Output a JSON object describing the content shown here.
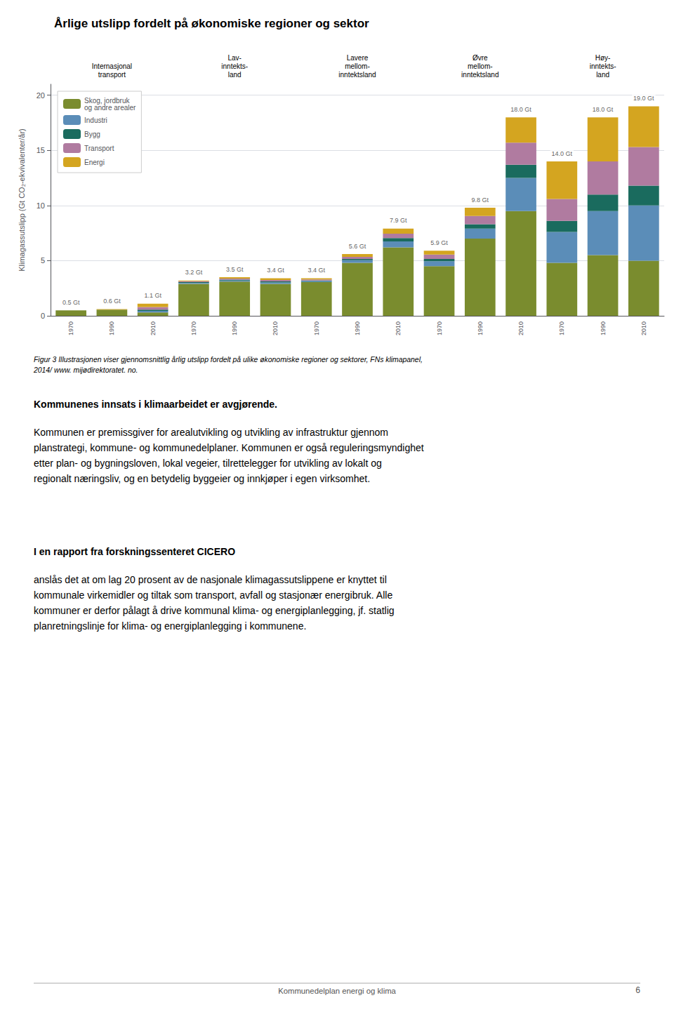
{
  "chart_data": {
    "type": "bar",
    "title": "Årlige utslipp fordelt på økonomiske regioner og sektor",
    "ylabel": "Klimagassutslipp (Gt CO₂-ekvivalenter/år)",
    "categories": [
      "1970",
      "1990",
      "2010",
      "1970",
      "1990",
      "2010",
      "1970",
      "1990",
      "2010",
      "1970",
      "1990",
      "2010",
      "1970",
      "1990",
      "2010"
    ],
    "groups": [
      {
        "label": "Internasjonal\ntransport",
        "categories": [
          "1970",
          "1990",
          "2010"
        ]
      },
      {
        "label": "Lav-\ninntekts-\nland",
        "categories": [
          "1970",
          "1990",
          "2010"
        ]
      },
      {
        "label": "Lavere\nmellom-\ninntektsland",
        "categories": [
          "1970",
          "1990",
          "2010"
        ]
      },
      {
        "label": "Øvre\nmellom-\ninntektsland",
        "categories": [
          "1970",
          "1990",
          "2010"
        ]
      },
      {
        "label": "Høy-\ninntekts-\nland",
        "categories": [
          "1970",
          "1990",
          "2010"
        ]
      }
    ],
    "series": [
      {
        "name": "Skog, jordbruk\nog andre arealer",
        "color": "#7a8c2e",
        "values": [
          0.5,
          0.55,
          0.3,
          2.9,
          3.1,
          2.9,
          3.05,
          4.8,
          6.2,
          4.5,
          7.0,
          9.5,
          4.8,
          5.5,
          5.0
        ]
      },
      {
        "name": "Industri",
        "color": "#5b8db8",
        "values": [
          0.0,
          0.0,
          0.15,
          0.08,
          0.1,
          0.12,
          0.1,
          0.25,
          0.55,
          0.45,
          0.9,
          3.0,
          2.8,
          4.0,
          5.0
        ]
      },
      {
        "name": "Bygg",
        "color": "#1a6b5e",
        "values": [
          0.0,
          0.0,
          0.1,
          0.07,
          0.08,
          0.1,
          0.05,
          0.1,
          0.3,
          0.2,
          0.4,
          1.2,
          1.0,
          1.5,
          1.8
        ]
      },
      {
        "name": "Transport",
        "color": "#b07ba0",
        "values": [
          0.0,
          0.0,
          0.25,
          0.08,
          0.1,
          0.12,
          0.1,
          0.2,
          0.4,
          0.4,
          0.75,
          2.0,
          2.0,
          3.0,
          3.5
        ]
      },
      {
        "name": "Energi",
        "color": "#d4a520",
        "values": [
          0.0,
          0.05,
          0.3,
          0.07,
          0.12,
          0.16,
          0.1,
          0.25,
          0.45,
          0.35,
          0.75,
          2.3,
          3.4,
          4.0,
          3.7
        ]
      }
    ],
    "totals": {
      "values": [
        0.5,
        0.6,
        1.1,
        3.2,
        3.5,
        3.4,
        3.4,
        5.6,
        7.9,
        5.9,
        9.8,
        18.0,
        14.0,
        18.0,
        19.0
      ],
      "value_labels": [
        "0.5 Gt",
        "0.6 Gt",
        "1.1 Gt",
        "3.2 Gt",
        "3.5 Gt",
        "3.4 Gt",
        "3.4 Gt",
        "5.6 Gt",
        "7.9 Gt",
        "5.9 Gt",
        "9.8 Gt",
        "18.0 Gt",
        "14.0 Gt",
        "18.0 Gt",
        "19.0 Gt"
      ]
    },
    "stacked": true,
    "ylim": [
      0,
      21
    ],
    "yticks": [
      0,
      5,
      10,
      15,
      20
    ],
    "grid": true,
    "legend": "upper left"
  },
  "caption": "Figur 3 Illustrasjonen viser gjennomsnittlig årlig utslipp fordelt på ulike økonomiske regioner og sektorer, FNs klimapanel,\n2014/ www. mijødirektoratet. no.",
  "paragraphs": [
    {
      "bold": "Kommunenes innsats i klimaarbeidet er avgjørende.",
      "text": "Kommunen er premissgiver for arealutvikling og utvikling av infrastruktur gjennom\nplanstrategi, kommune- og kommunedelplaner. Kommunen er også reguleringsmyndighet\netter plan- og bygningsloven, lokal vegeier, tilrettelegger for utvikling av lokalt og\nregionalt næringsliv, og en betydelig byggeier og innkjøper i egen virksomhet."
    },
    {
      "bold": "I en rapport fra forskningssenteret CICERO",
      "text": "anslås det at om lag 20 prosent av de nasjonale klimagassutslippene er knyttet til\nkommunale virkemidler og tiltak som transport, avfall og stasjonær energibruk. Alle\nkommuner er derfor pålagt å drive kommunal klima- og energiplanlegging, jf. statlig\nplanretningslinje for klima- og energiplanlegging i kommunene."
    }
  ],
  "footer_center": "Kommunedelplan energi og klima",
  "footer_right": "6"
}
